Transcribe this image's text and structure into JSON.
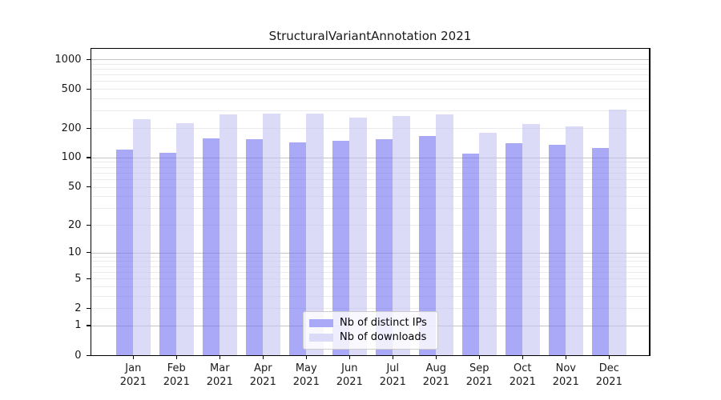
{
  "chart_data": {
    "type": "bar",
    "title": "StructuralVariantAnnotation 2021",
    "categories": [
      "Jan 2021",
      "Feb 2021",
      "Mar 2021",
      "Apr 2021",
      "May 2021",
      "Jun 2021",
      "Jul 2021",
      "Aug 2021",
      "Sep 2021",
      "Oct 2021",
      "Nov 2021",
      "Dec 2021"
    ],
    "month_labels": [
      "Jan",
      "Feb",
      "Mar",
      "Apr",
      "May",
      "Jun",
      "Jul",
      "Aug",
      "Sep",
      "Oct",
      "Nov",
      "Dec"
    ],
    "year_label": "2021",
    "series": [
      {
        "name": "Nb of distinct IPs",
        "key": "distinct-ips",
        "color_hex": "#a9a9f7",
        "color_fill": "rgba(112,112,242,0.6)",
        "values": [
          120,
          112,
          156,
          153,
          142,
          148,
          153,
          166,
          110,
          139,
          136,
          125
        ]
      },
      {
        "name": "Nb of downloads",
        "key": "downloads",
        "color_hex": "#dbdbf8",
        "color_fill": "rgba(195,195,243,0.6)",
        "values": [
          245,
          223,
          277,
          282,
          282,
          257,
          265,
          277,
          180,
          220,
          209,
          310
        ]
      }
    ],
    "y_axis": {
      "scale": "log1p",
      "ticks": [
        0,
        1,
        2,
        5,
        10,
        20,
        50,
        100,
        200,
        500,
        1000
      ],
      "major_gridlines": [
        1,
        10,
        100,
        1000
      ],
      "ylim": [
        0,
        1288
      ]
    },
    "xlabel": "",
    "ylabel": "",
    "grid": "horizontal, minor and major gridlines",
    "legend_position": "lower center"
  },
  "colors": {
    "background": "#ffffff",
    "bar_distinct_ips": "#a9a9f7",
    "bar_downloads": "#dbdbf8",
    "grid_minor": "#ebebeb",
    "grid_major": "#c4c4c4",
    "spine": "#000000",
    "text": "#1a1a1a",
    "legend_border": "#cccccc"
  }
}
